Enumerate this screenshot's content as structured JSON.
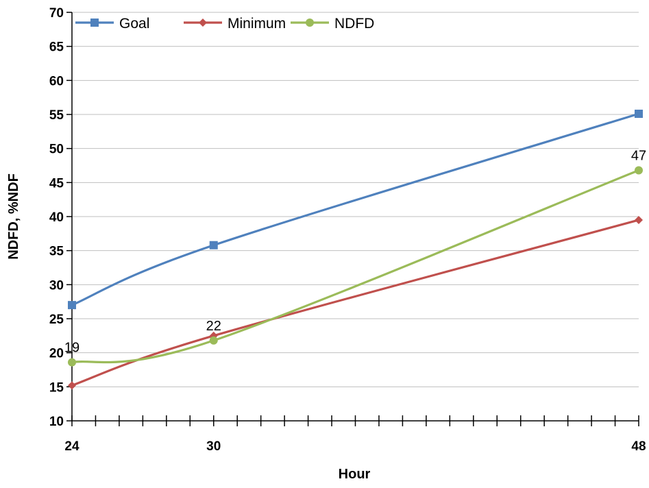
{
  "chart_data": {
    "type": "line",
    "xlabel": "Hour",
    "ylabel": "NDFD, %NDF",
    "xlim": [
      24,
      48
    ],
    "ylim": [
      10,
      70
    ],
    "yticks": [
      10,
      15,
      20,
      25,
      30,
      35,
      40,
      45,
      50,
      55,
      60,
      65,
      70
    ],
    "xtick_labels": [
      24,
      30,
      48
    ],
    "x": [
      24,
      30,
      48
    ],
    "series": [
      {
        "name": "Goal",
        "color": "#4f81bd",
        "marker": "square",
        "values": [
          27,
          35.8,
          55.1
        ],
        "data_labels": [
          "",
          "",
          ""
        ]
      },
      {
        "name": "Minimum",
        "color": "#c0504d",
        "marker": "diamond",
        "values": [
          15.2,
          22.5,
          39.5
        ],
        "data_labels": [
          "",
          "",
          ""
        ]
      },
      {
        "name": "NDFD",
        "color": "#9bbb59",
        "marker": "circle",
        "values": [
          18.6,
          21.8,
          46.8
        ],
        "data_labels": [
          "19",
          "22",
          "47"
        ]
      }
    ],
    "legend_position": "top",
    "grid": true
  }
}
